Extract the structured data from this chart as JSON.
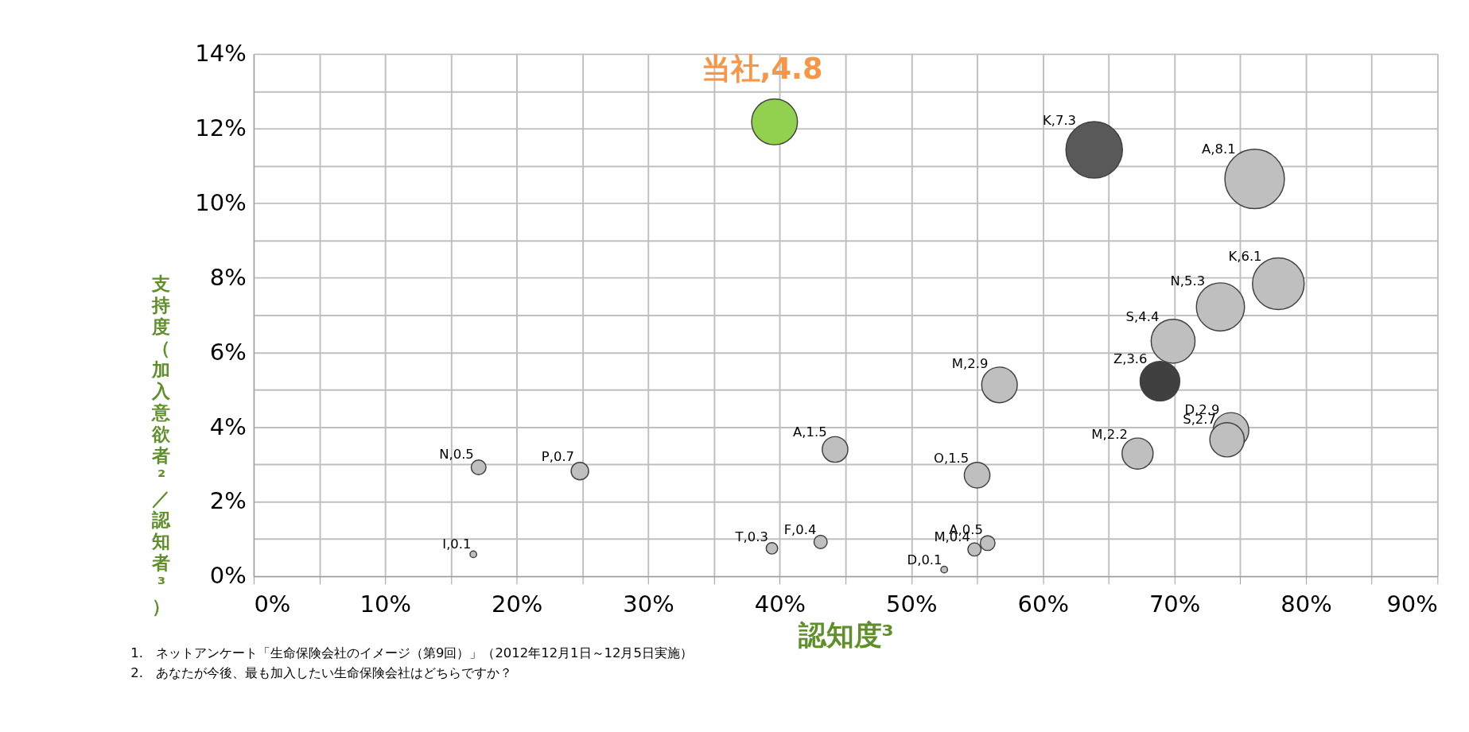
{
  "chart_data": {
    "type": "bubble",
    "xlabel": "認知度³",
    "ylabel": "支持度（加入意欲者²／認知者³）",
    "xlim": [
      0,
      90
    ],
    "ylim": [
      0,
      14
    ],
    "xticks": [
      {
        "value": 0,
        "label": "0%"
      },
      {
        "value": 5,
        "label": null
      },
      {
        "value": 10,
        "label": "10%"
      },
      {
        "value": 15,
        "label": null
      },
      {
        "value": 20,
        "label": "20%"
      },
      {
        "value": 25,
        "label": null
      },
      {
        "value": 30,
        "label": "30%"
      },
      {
        "value": 35,
        "label": null
      },
      {
        "value": 40,
        "label": "40%"
      },
      {
        "value": 45,
        "label": null
      },
      {
        "value": 50,
        "label": "50%"
      },
      {
        "value": 55,
        "label": null
      },
      {
        "value": 60,
        "label": "60%"
      },
      {
        "value": 65,
        "label": null
      },
      {
        "value": 70,
        "label": "70%"
      },
      {
        "value": 75,
        "label": null
      },
      {
        "value": 80,
        "label": "80%"
      },
      {
        "value": 85,
        "label": null
      },
      {
        "value": 90,
        "label": "90%"
      }
    ],
    "yticks": [
      {
        "value": 0,
        "label": "0%"
      },
      {
        "value": 1,
        "label": null
      },
      {
        "value": 2,
        "label": "2%"
      },
      {
        "value": 3,
        "label": null
      },
      {
        "value": 4,
        "label": "4%"
      },
      {
        "value": 5,
        "label": null
      },
      {
        "value": 6,
        "label": "6%"
      },
      {
        "value": 7,
        "label": null
      },
      {
        "value": 8,
        "label": "8%"
      },
      {
        "value": 9,
        "label": null
      },
      {
        "value": 10,
        "label": "10%"
      },
      {
        "value": 11,
        "label": null
      },
      {
        "value": 12,
        "label": "12%"
      },
      {
        "value": 13,
        "label": null
      },
      {
        "value": 14,
        "label": "14%"
      }
    ],
    "grid": true,
    "series": [
      {
        "color": "#92d050",
        "x": [
          39.6
        ],
        "values": [
          12.18
        ],
        "sizes": [
          4.8
        ],
        "value_labels": [
          "当社,4.8"
        ]
      },
      {
        "x": [
          63.9,
          76.1,
          77.9,
          73.5,
          69.9,
          68.9,
          56.7,
          74.3,
          74.0,
          67.2,
          44.2,
          55.0,
          17.1,
          24.8,
          16.7,
          39.4,
          43.1,
          54.8,
          55.8,
          52.5
        ],
        "values": [
          11.43,
          10.65,
          7.84,
          7.22,
          6.3,
          5.23,
          5.13,
          3.91,
          3.66,
          3.29,
          3.4,
          2.71,
          2.92,
          2.82,
          0.59,
          0.75,
          0.92,
          0.72,
          0.89,
          0.18
        ],
        "sizes": [
          7.3,
          8.1,
          6.1,
          5.3,
          4.4,
          3.6,
          2.9,
          2.9,
          2.7,
          2.2,
          1.5,
          1.5,
          0.5,
          0.7,
          0.1,
          0.3,
          0.4,
          0.4,
          0.5,
          0.1
        ],
        "colors": [
          "#595959",
          "#bfbfbf",
          "#bfbfbf",
          "#bfbfbf",
          "#bfbfbf",
          "#404040",
          "#bfbfbf",
          "#bfbfbf",
          "#bfbfbf",
          "#bfbfbf",
          "#bfbfbf",
          "#bfbfbf",
          "#bfbfbf",
          "#bfbfbf",
          "#bfbfbf",
          "#bfbfbf",
          "#bfbfbf",
          "#bfbfbf",
          "#bfbfbf",
          "#bfbfbf"
        ],
        "value_labels": [
          "K,7.3",
          "A,8.1",
          "K,6.1",
          "N,5.3",
          "S,4.4",
          "Z,3.6",
          "M,2.9",
          "D,2.9",
          "S,2.7",
          "M,2.2",
          "A,1.5",
          "O,1.5",
          "N,0.5",
          "P,0.7",
          "I,0.1",
          "T,0.3",
          "F,0.4",
          "M,0.4",
          "A,0.5",
          "D,0.1"
        ]
      }
    ],
    "annotations": [
      "1.　ネットアンケート「生命保険会社のイメージ（第9回）」（2012年12月1日～12月5日実施）",
      "2.　あなたが今後、最も加入したい生命保険会社はどちらですか？"
    ]
  }
}
